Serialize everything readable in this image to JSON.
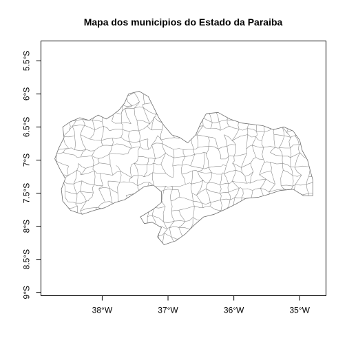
{
  "map": {
    "title": "Mapa dos municipios do Estado da Paraiba",
    "x_axis": {
      "ticks": [
        {
          "value": -38,
          "label": "38°W"
        },
        {
          "value": -37,
          "label": "37°W"
        },
        {
          "value": -36,
          "label": "36°W"
        },
        {
          "value": -35,
          "label": "35°W"
        }
      ],
      "range": [
        -38.93,
        -34.6
      ]
    },
    "y_axis": {
      "ticks": [
        {
          "value": -5.5,
          "label": "5.5°S"
        },
        {
          "value": -6.0,
          "label": "6°S"
        },
        {
          "value": -6.5,
          "label": "6.5°S"
        },
        {
          "value": -7.0,
          "label": "7°S"
        },
        {
          "value": -7.5,
          "label": "7.5°S"
        },
        {
          "value": -8.0,
          "label": "8°S"
        },
        {
          "value": -8.5,
          "label": "8.5°S"
        },
        {
          "value": -9.0,
          "label": "9°S"
        }
      ],
      "range": [
        -9.05,
        -5.2
      ]
    },
    "colors": {
      "boundary": "#8c8c8c",
      "frame": "#000000",
      "background": "#ffffff"
    },
    "state_outline": [
      [
        -38.72,
        -6.98
      ],
      [
        -38.66,
        -6.82
      ],
      [
        -38.58,
        -6.66
      ],
      [
        -38.6,
        -6.5
      ],
      [
        -38.48,
        -6.42
      ],
      [
        -38.34,
        -6.36
      ],
      [
        -38.2,
        -6.4
      ],
      [
        -38.06,
        -6.32
      ],
      [
        -37.94,
        -6.38
      ],
      [
        -37.84,
        -6.32
      ],
      [
        -37.74,
        -6.24
      ],
      [
        -37.66,
        -6.14
      ],
      [
        -37.6,
        -6.0
      ],
      [
        -37.44,
        -5.96
      ],
      [
        -37.3,
        -6.04
      ],
      [
        -37.22,
        -6.2
      ],
      [
        -37.14,
        -6.36
      ],
      [
        -37.06,
        -6.48
      ],
      [
        -36.94,
        -6.62
      ],
      [
        -36.82,
        -6.66
      ],
      [
        -36.7,
        -6.74
      ],
      [
        -36.58,
        -6.62
      ],
      [
        -36.5,
        -6.44
      ],
      [
        -36.42,
        -6.3
      ],
      [
        -36.24,
        -6.28
      ],
      [
        -36.06,
        -6.38
      ],
      [
        -35.88,
        -6.44
      ],
      [
        -35.72,
        -6.46
      ],
      [
        -35.56,
        -6.48
      ],
      [
        -35.4,
        -6.54
      ],
      [
        -35.24,
        -6.5
      ],
      [
        -35.1,
        -6.56
      ],
      [
        -35.0,
        -6.7
      ],
      [
        -34.96,
        -6.86
      ],
      [
        -34.88,
        -7.0
      ],
      [
        -34.84,
        -7.16
      ],
      [
        -34.8,
        -7.3
      ],
      [
        -34.8,
        -7.54
      ],
      [
        -34.94,
        -7.54
      ],
      [
        -35.1,
        -7.44
      ],
      [
        -35.3,
        -7.46
      ],
      [
        -35.48,
        -7.52
      ],
      [
        -35.62,
        -7.56
      ],
      [
        -35.82,
        -7.58
      ],
      [
        -35.96,
        -7.66
      ],
      [
        -36.12,
        -7.74
      ],
      [
        -36.3,
        -7.82
      ],
      [
        -36.46,
        -7.86
      ],
      [
        -36.6,
        -7.98
      ],
      [
        -36.74,
        -8.12
      ],
      [
        -36.88,
        -8.22
      ],
      [
        -37.06,
        -8.28
      ],
      [
        -37.16,
        -8.16
      ],
      [
        -37.1,
        -8.02
      ],
      [
        -37.24,
        -7.94
      ],
      [
        -37.36,
        -7.96
      ],
      [
        -37.42,
        -7.86
      ],
      [
        -37.22,
        -7.74
      ],
      [
        -37.1,
        -7.64
      ],
      [
        -37.1,
        -7.48
      ],
      [
        -37.22,
        -7.38
      ],
      [
        -37.36,
        -7.4
      ],
      [
        -37.5,
        -7.5
      ],
      [
        -37.66,
        -7.6
      ],
      [
        -37.8,
        -7.64
      ],
      [
        -37.96,
        -7.72
      ],
      [
        -38.12,
        -7.76
      ],
      [
        -38.3,
        -7.82
      ],
      [
        -38.48,
        -7.76
      ],
      [
        -38.6,
        -7.62
      ],
      [
        -38.62,
        -7.44
      ],
      [
        -38.56,
        -7.28
      ],
      [
        -38.64,
        -7.14
      ]
    ]
  }
}
